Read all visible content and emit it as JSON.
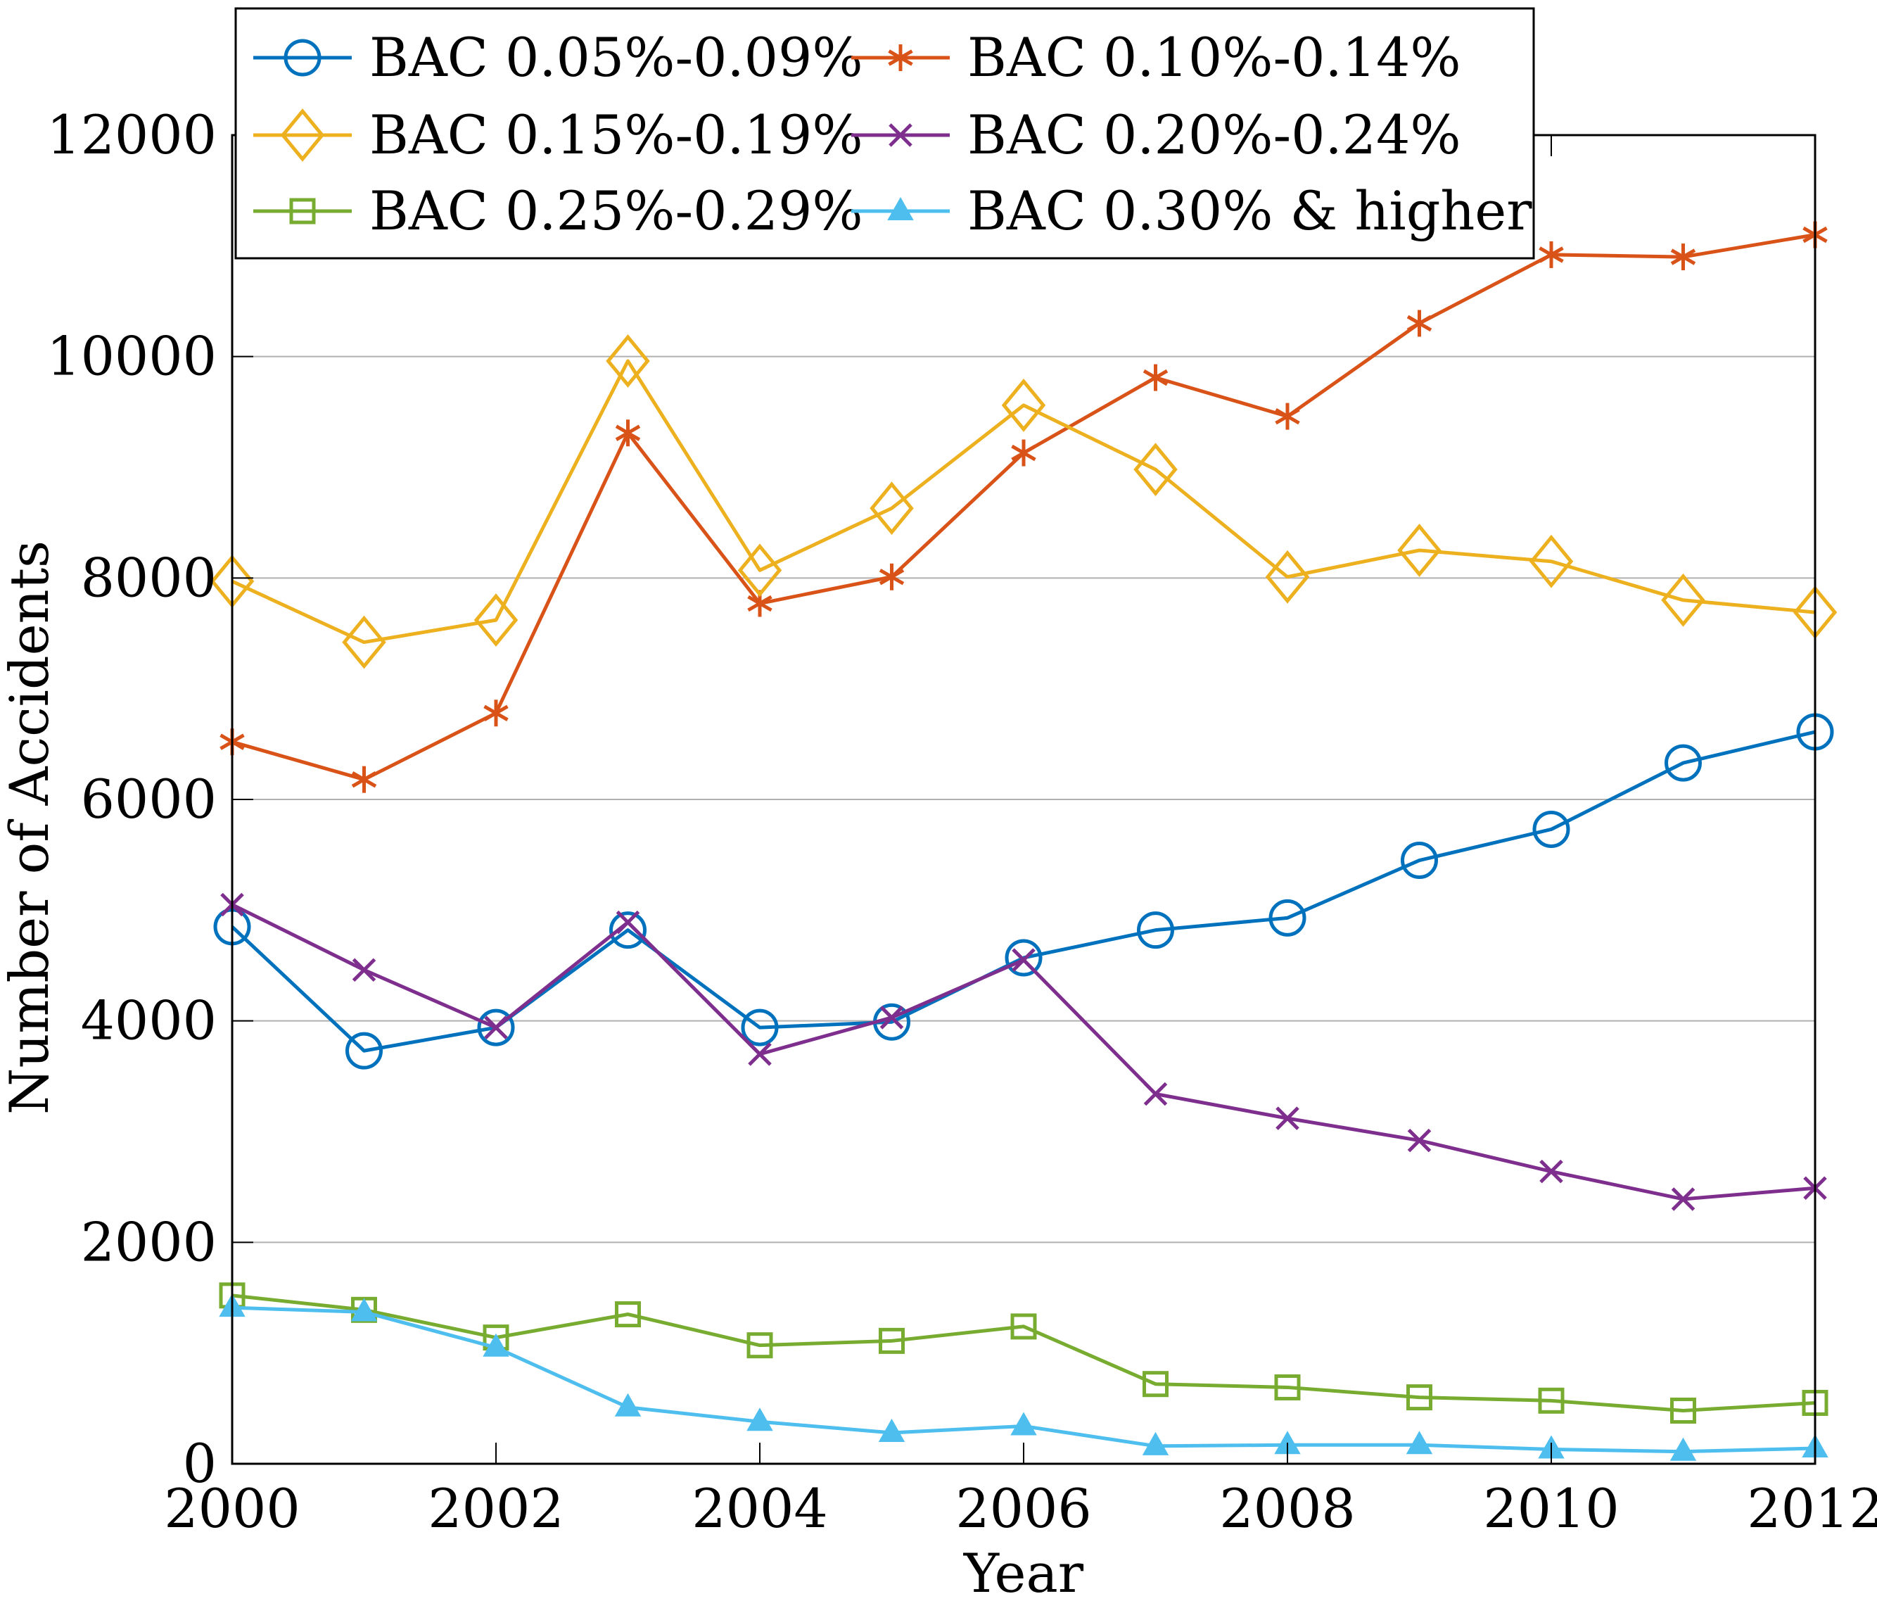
{
  "chart_data": {
    "type": "line",
    "xlabel": "Year",
    "ylabel": "Number of Accidents",
    "xlim": [
      2000,
      2012
    ],
    "ylim": [
      0,
      12000
    ],
    "x_ticks": [
      2000,
      2002,
      2004,
      2006,
      2008,
      2010,
      2012
    ],
    "y_ticks": [
      0,
      2000,
      4000,
      6000,
      8000,
      10000,
      12000
    ],
    "grid": "horizontal",
    "legend_position": "top-left",
    "x": [
      2000,
      2001,
      2002,
      2003,
      2004,
      2005,
      2006,
      2007,
      2008,
      2009,
      2010,
      2011,
      2012
    ],
    "series": [
      {
        "name": "BAC 0.05%-0.09%",
        "color": "#0072BD",
        "marker": "circle",
        "values": [
          4850,
          3730,
          3940,
          4820,
          3940,
          3990,
          4570,
          4820,
          4930,
          5450,
          5730,
          6330,
          6610
        ]
      },
      {
        "name": "BAC 0.10%-0.14%",
        "color": "#D95319",
        "marker": "asterisk",
        "values": [
          6520,
          6180,
          6780,
          9310,
          7770,
          8010,
          9130,
          9810,
          9460,
          10300,
          10920,
          10900,
          11100
        ]
      },
      {
        "name": "BAC 0.15%-0.19%",
        "color": "#EDB120",
        "marker": "diamond",
        "values": [
          7970,
          7420,
          7620,
          9960,
          8070,
          8630,
          9560,
          8980,
          8010,
          8250,
          8150,
          7800,
          7690
        ]
      },
      {
        "name": "BAC 0.20%-0.24%",
        "color": "#7E2F8E",
        "marker": "x",
        "values": [
          5050,
          4460,
          3940,
          4890,
          3700,
          4030,
          4550,
          3340,
          3120,
          2920,
          2640,
          2390,
          2490
        ]
      },
      {
        "name": "BAC 0.25%-0.29%",
        "color": "#77AC30",
        "marker": "square",
        "values": [
          1520,
          1390,
          1140,
          1350,
          1070,
          1110,
          1240,
          720,
          690,
          600,
          570,
          480,
          550
        ]
      },
      {
        "name": "BAC 0.30% & higher",
        "color": "#4DBEEE",
        "marker": "triangle",
        "values": [
          1410,
          1370,
          1050,
          510,
          380,
          280,
          340,
          160,
          170,
          170,
          130,
          110,
          140
        ]
      }
    ]
  }
}
